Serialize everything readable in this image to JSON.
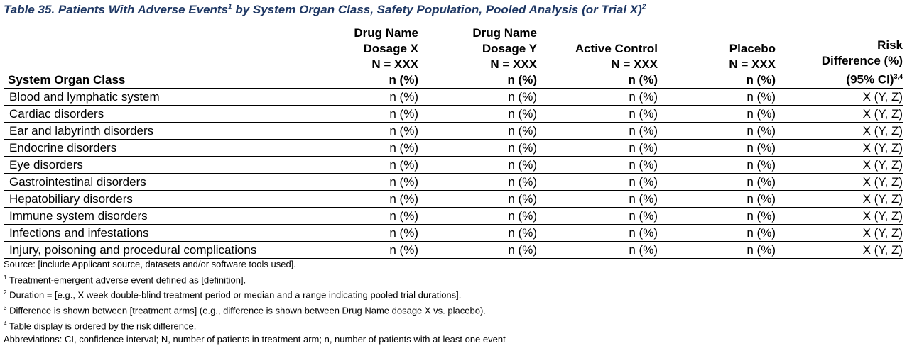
{
  "title": {
    "prefix": "Table 35. Patients With Adverse Events",
    "sup1": "1",
    "middle": " by System Organ Class, Safety Population, Pooled Analysis (or Trial X)",
    "sup2": "2"
  },
  "header": {
    "soc": "System Organ Class",
    "col1": [
      "Drug Name",
      "Dosage X",
      "N = XXX",
      "n (%)"
    ],
    "col2": [
      "Drug Name",
      "Dosage Y",
      "N = XXX",
      "n (%)"
    ],
    "col3": [
      "Active Control",
      "N = XXX",
      "n (%)"
    ],
    "col4": [
      "Placebo",
      "N = XXX",
      "n (%)"
    ],
    "col5": [
      "Risk",
      "Difference (%)",
      "(95% CI)"
    ],
    "col5_sup": "3,4"
  },
  "rows": [
    {
      "soc": "Blood and lymphatic system",
      "c1": "n (%)",
      "c2": "n (%)",
      "c3": "n (%)",
      "c4": "n (%)",
      "c5": "X (Y, Z)"
    },
    {
      "soc": "Cardiac disorders",
      "c1": "n (%)",
      "c2": "n (%)",
      "c3": "n (%)",
      "c4": "n (%)",
      "c5": "X (Y, Z)"
    },
    {
      "soc": "Ear and labyrinth disorders",
      "c1": "n (%)",
      "c2": "n (%)",
      "c3": "n (%)",
      "c4": "n (%)",
      "c5": "X (Y, Z)"
    },
    {
      "soc": "Endocrine disorders",
      "c1": "n (%)",
      "c2": "n (%)",
      "c3": "n (%)",
      "c4": "n (%)",
      "c5": "X (Y, Z)"
    },
    {
      "soc": "Eye disorders",
      "c1": "n (%)",
      "c2": "n (%)",
      "c3": "n (%)",
      "c4": "n (%)",
      "c5": "X (Y, Z)"
    },
    {
      "soc": "Gastrointestinal disorders",
      "c1": "n (%)",
      "c2": "n (%)",
      "c3": "n (%)",
      "c4": "n (%)",
      "c5": "X (Y, Z)"
    },
    {
      "soc": "Hepatobiliary disorders",
      "c1": "n (%)",
      "c2": "n (%)",
      "c3": "n (%)",
      "c4": "n (%)",
      "c5": "X (Y, Z)"
    },
    {
      "soc": "Immune system disorders",
      "c1": "n (%)",
      "c2": "n (%)",
      "c3": "n (%)",
      "c4": "n (%)",
      "c5": "X (Y, Z)"
    },
    {
      "soc": "Infections and infestations",
      "c1": "n (%)",
      "c2": "n (%)",
      "c3": "n (%)",
      "c4": "n (%)",
      "c5": "X (Y, Z)"
    },
    {
      "soc": "Injury, poisoning and procedural complications",
      "c1": "n (%)",
      "c2": "n (%)",
      "c3": "n (%)",
      "c4": "n (%)",
      "c5": "X (Y, Z)"
    }
  ],
  "notes": {
    "source": "Source: [include Applicant source, datasets and/or software tools used].",
    "fn1_num": "1",
    "fn1": "Treatment-emergent adverse event defined as [definition].",
    "fn2_num": "2",
    "fn2": "Duration = [e.g., X week double-blind treatment period or median and a range indicating pooled trial durations].",
    "fn3_num": "3",
    "fn3": "Difference is shown between [treatment arms] (e.g., difference is shown between Drug Name dosage X vs. placebo).",
    "fn4_num": "4",
    "fn4": "Table display is ordered by the risk difference.",
    "abbrev": "Abbreviations: CI, confidence interval; N, number of patients in treatment arm; n, number of patients with at least one event"
  },
  "colors": {
    "title": "#1f3864",
    "text": "#000000"
  }
}
